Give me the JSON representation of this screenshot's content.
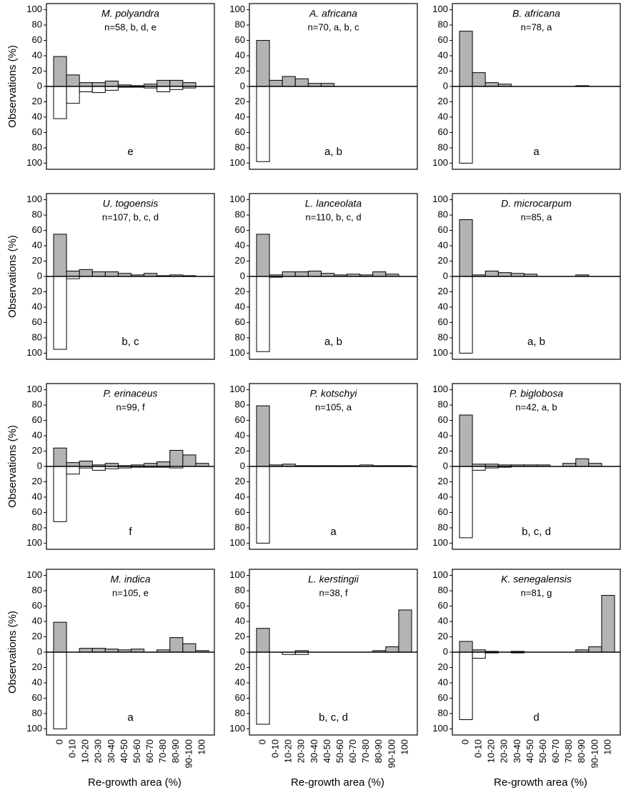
{
  "x_axis": {
    "label": "Re-growth area (%)",
    "categories": [
      "0",
      "0-10",
      "10-20",
      "20-30",
      "30-40",
      "40-50",
      "50-60",
      "60-70",
      "70-80",
      "80-90",
      "90-100",
      "100"
    ]
  },
  "y_axis": {
    "label": "Observations (%)",
    "ylim": [
      -108,
      108
    ],
    "yticks": [
      100,
      80,
      60,
      40,
      20,
      0,
      {
        "value": -20,
        "label": "20"
      },
      {
        "value": -40,
        "label": "40"
      },
      {
        "value": -60,
        "label": "60"
      },
      {
        "value": -80,
        "label": "80"
      },
      {
        "value": -100,
        "label": "100"
      }
    ]
  },
  "chart_data": [
    {
      "type": "bar",
      "title": "M. polyandra",
      "subtitle": "n=58,  b, d, e",
      "annotation": "e",
      "series": [
        {
          "color": "#b3b3b3",
          "values": [
            39,
            15,
            5,
            5,
            7,
            2,
            1,
            3,
            8,
            8,
            5,
            0
          ]
        },
        {
          "color": "#ffffff",
          "values": [
            -42,
            -22,
            -7,
            -8,
            -5,
            -1,
            -1,
            -2,
            -7,
            -4,
            -2,
            0
          ]
        }
      ]
    },
    {
      "type": "bar",
      "title": "A. africana",
      "subtitle": "n=70,  a, b, c",
      "annotation": "a, b",
      "series": [
        {
          "color": "#b3b3b3",
          "values": [
            60,
            8,
            13,
            10,
            4,
            4,
            0,
            0,
            0,
            0,
            0,
            0
          ]
        },
        {
          "color": "#ffffff",
          "values": [
            -98,
            0,
            0,
            0,
            0,
            0,
            0,
            0,
            0,
            0,
            0,
            0
          ]
        }
      ]
    },
    {
      "type": "bar",
      "title": "B. africana",
      "subtitle": "n=78,  a",
      "annotation": "a",
      "series": [
        {
          "color": "#b3b3b3",
          "values": [
            72,
            18,
            5,
            3,
            0,
            0,
            0,
            0,
            0,
            1,
            0,
            0
          ]
        },
        {
          "color": "#ffffff",
          "values": [
            -100,
            0,
            0,
            0,
            0,
            0,
            0,
            0,
            0,
            0,
            0,
            0
          ]
        }
      ]
    },
    {
      "type": "bar",
      "title": "U. togoensis",
      "subtitle": "n=107,  b, c, d",
      "annotation": "b, c",
      "series": [
        {
          "color": "#b3b3b3",
          "values": [
            55,
            7,
            9,
            6,
            6,
            4,
            2,
            4,
            1,
            2,
            1,
            0
          ]
        },
        {
          "color": "#ffffff",
          "values": [
            -95,
            -3,
            0,
            0,
            0,
            0,
            0,
            0,
            0,
            0,
            0,
            0
          ]
        }
      ]
    },
    {
      "type": "bar",
      "title": "L. lanceolata",
      "subtitle": "n=110,  b, c, d",
      "annotation": "a, b",
      "series": [
        {
          "color": "#b3b3b3",
          "values": [
            55,
            2,
            6,
            6,
            7,
            4,
            2,
            3,
            2,
            6,
            3,
            0
          ]
        },
        {
          "color": "#ffffff",
          "values": [
            -98,
            -1,
            0,
            0,
            0,
            0,
            0,
            0,
            0,
            0,
            0,
            0
          ]
        }
      ]
    },
    {
      "type": "bar",
      "title": "D. microcarpum",
      "subtitle": "n=85,  a",
      "annotation": "a, b",
      "series": [
        {
          "color": "#b3b3b3",
          "values": [
            74,
            2,
            7,
            5,
            4,
            3,
            0,
            0,
            0,
            2,
            0,
            0
          ]
        },
        {
          "color": "#ffffff",
          "values": [
            -100,
            0,
            0,
            0,
            0,
            0,
            0,
            0,
            0,
            0,
            0,
            0
          ]
        }
      ]
    },
    {
      "type": "bar",
      "title": "P. erinaceus",
      "subtitle": "n=99,  f",
      "annotation": "f",
      "series": [
        {
          "color": "#b3b3b3",
          "values": [
            24,
            5,
            7,
            2,
            4,
            1,
            2,
            4,
            6,
            21,
            15,
            4
          ]
        },
        {
          "color": "#ffffff",
          "values": [
            -72,
            -10,
            -2,
            -5,
            -3,
            -2,
            -1,
            -1,
            -1,
            -2,
            0,
            0
          ]
        }
      ]
    },
    {
      "type": "bar",
      "title": "P. kotschyi",
      "subtitle": "n=105,  a",
      "annotation": "a",
      "series": [
        {
          "color": "#b3b3b3",
          "values": [
            79,
            2,
            3,
            1,
            1,
            1,
            1,
            1,
            2,
            1,
            1,
            1
          ]
        },
        {
          "color": "#ffffff",
          "values": [
            -100,
            0,
            0,
            0,
            0,
            0,
            0,
            0,
            0,
            0,
            0,
            0
          ]
        }
      ]
    },
    {
      "type": "bar",
      "title": "P. biglobosa",
      "subtitle": "n=42,  a, b",
      "annotation": "b, c, d",
      "series": [
        {
          "color": "#b3b3b3",
          "values": [
            67,
            3,
            3,
            2,
            2,
            2,
            2,
            0,
            4,
            10,
            4,
            0
          ]
        },
        {
          "color": "#ffffff",
          "values": [
            -93,
            -5,
            -2,
            -1,
            0,
            0,
            0,
            0,
            0,
            0,
            0,
            0
          ]
        }
      ]
    },
    {
      "type": "bar",
      "title": "M. indica",
      "subtitle": "n=105,  e",
      "annotation": "a",
      "series": [
        {
          "color": "#b3b3b3",
          "values": [
            39,
            0,
            5,
            5,
            4,
            3,
            4,
            0,
            3,
            19,
            11,
            2
          ]
        },
        {
          "color": "#ffffff",
          "values": [
            -100,
            0,
            0,
            0,
            0,
            0,
            0,
            0,
            0,
            0,
            0,
            0
          ]
        }
      ]
    },
    {
      "type": "bar",
      "title": "L. kerstingii",
      "subtitle": "n=38,  f",
      "annotation": "b, c, d",
      "series": [
        {
          "color": "#b3b3b3",
          "values": [
            31,
            0,
            0,
            2,
            0,
            0,
            0,
            0,
            0,
            2,
            7,
            55
          ]
        },
        {
          "color": "#ffffff",
          "values": [
            -94,
            0,
            -3,
            -3,
            0,
            0,
            0,
            0,
            0,
            0,
            0,
            0
          ]
        }
      ]
    },
    {
      "type": "bar",
      "title": "K. senegalensis",
      "subtitle": "n=81,  g",
      "annotation": "d",
      "series": [
        {
          "color": "#b3b3b3",
          "values": [
            14,
            3,
            1,
            0,
            1,
            0,
            0,
            0,
            0,
            3,
            7,
            74
          ]
        },
        {
          "color": "#ffffff",
          "values": [
            -88,
            -8,
            -1,
            0,
            -1,
            0,
            0,
            0,
            0,
            0,
            0,
            0
          ]
        }
      ]
    }
  ]
}
